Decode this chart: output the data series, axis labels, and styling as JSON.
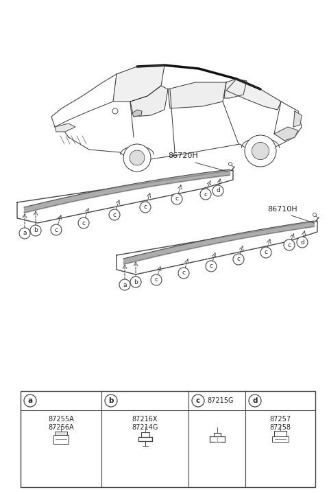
{
  "bg_color": "#ffffff",
  "fig_width": 4.8,
  "fig_height": 7.2,
  "dpi": 100,
  "label_86720H": "86720H",
  "label_86710H": "86710H",
  "car_color": "#333333",
  "mould_color": "#444444",
  "table_border": "#555555",
  "parts": [
    {
      "label": "a",
      "part_numbers": [
        "87255A",
        "87256A"
      ]
    },
    {
      "label": "b",
      "part_numbers": [
        "87216X",
        "87214G"
      ]
    },
    {
      "label": "c",
      "part_numbers": [
        "87215G"
      ],
      "header_extra": true
    },
    {
      "label": "d",
      "part_numbers": [
        "87257",
        "87258"
      ]
    }
  ]
}
